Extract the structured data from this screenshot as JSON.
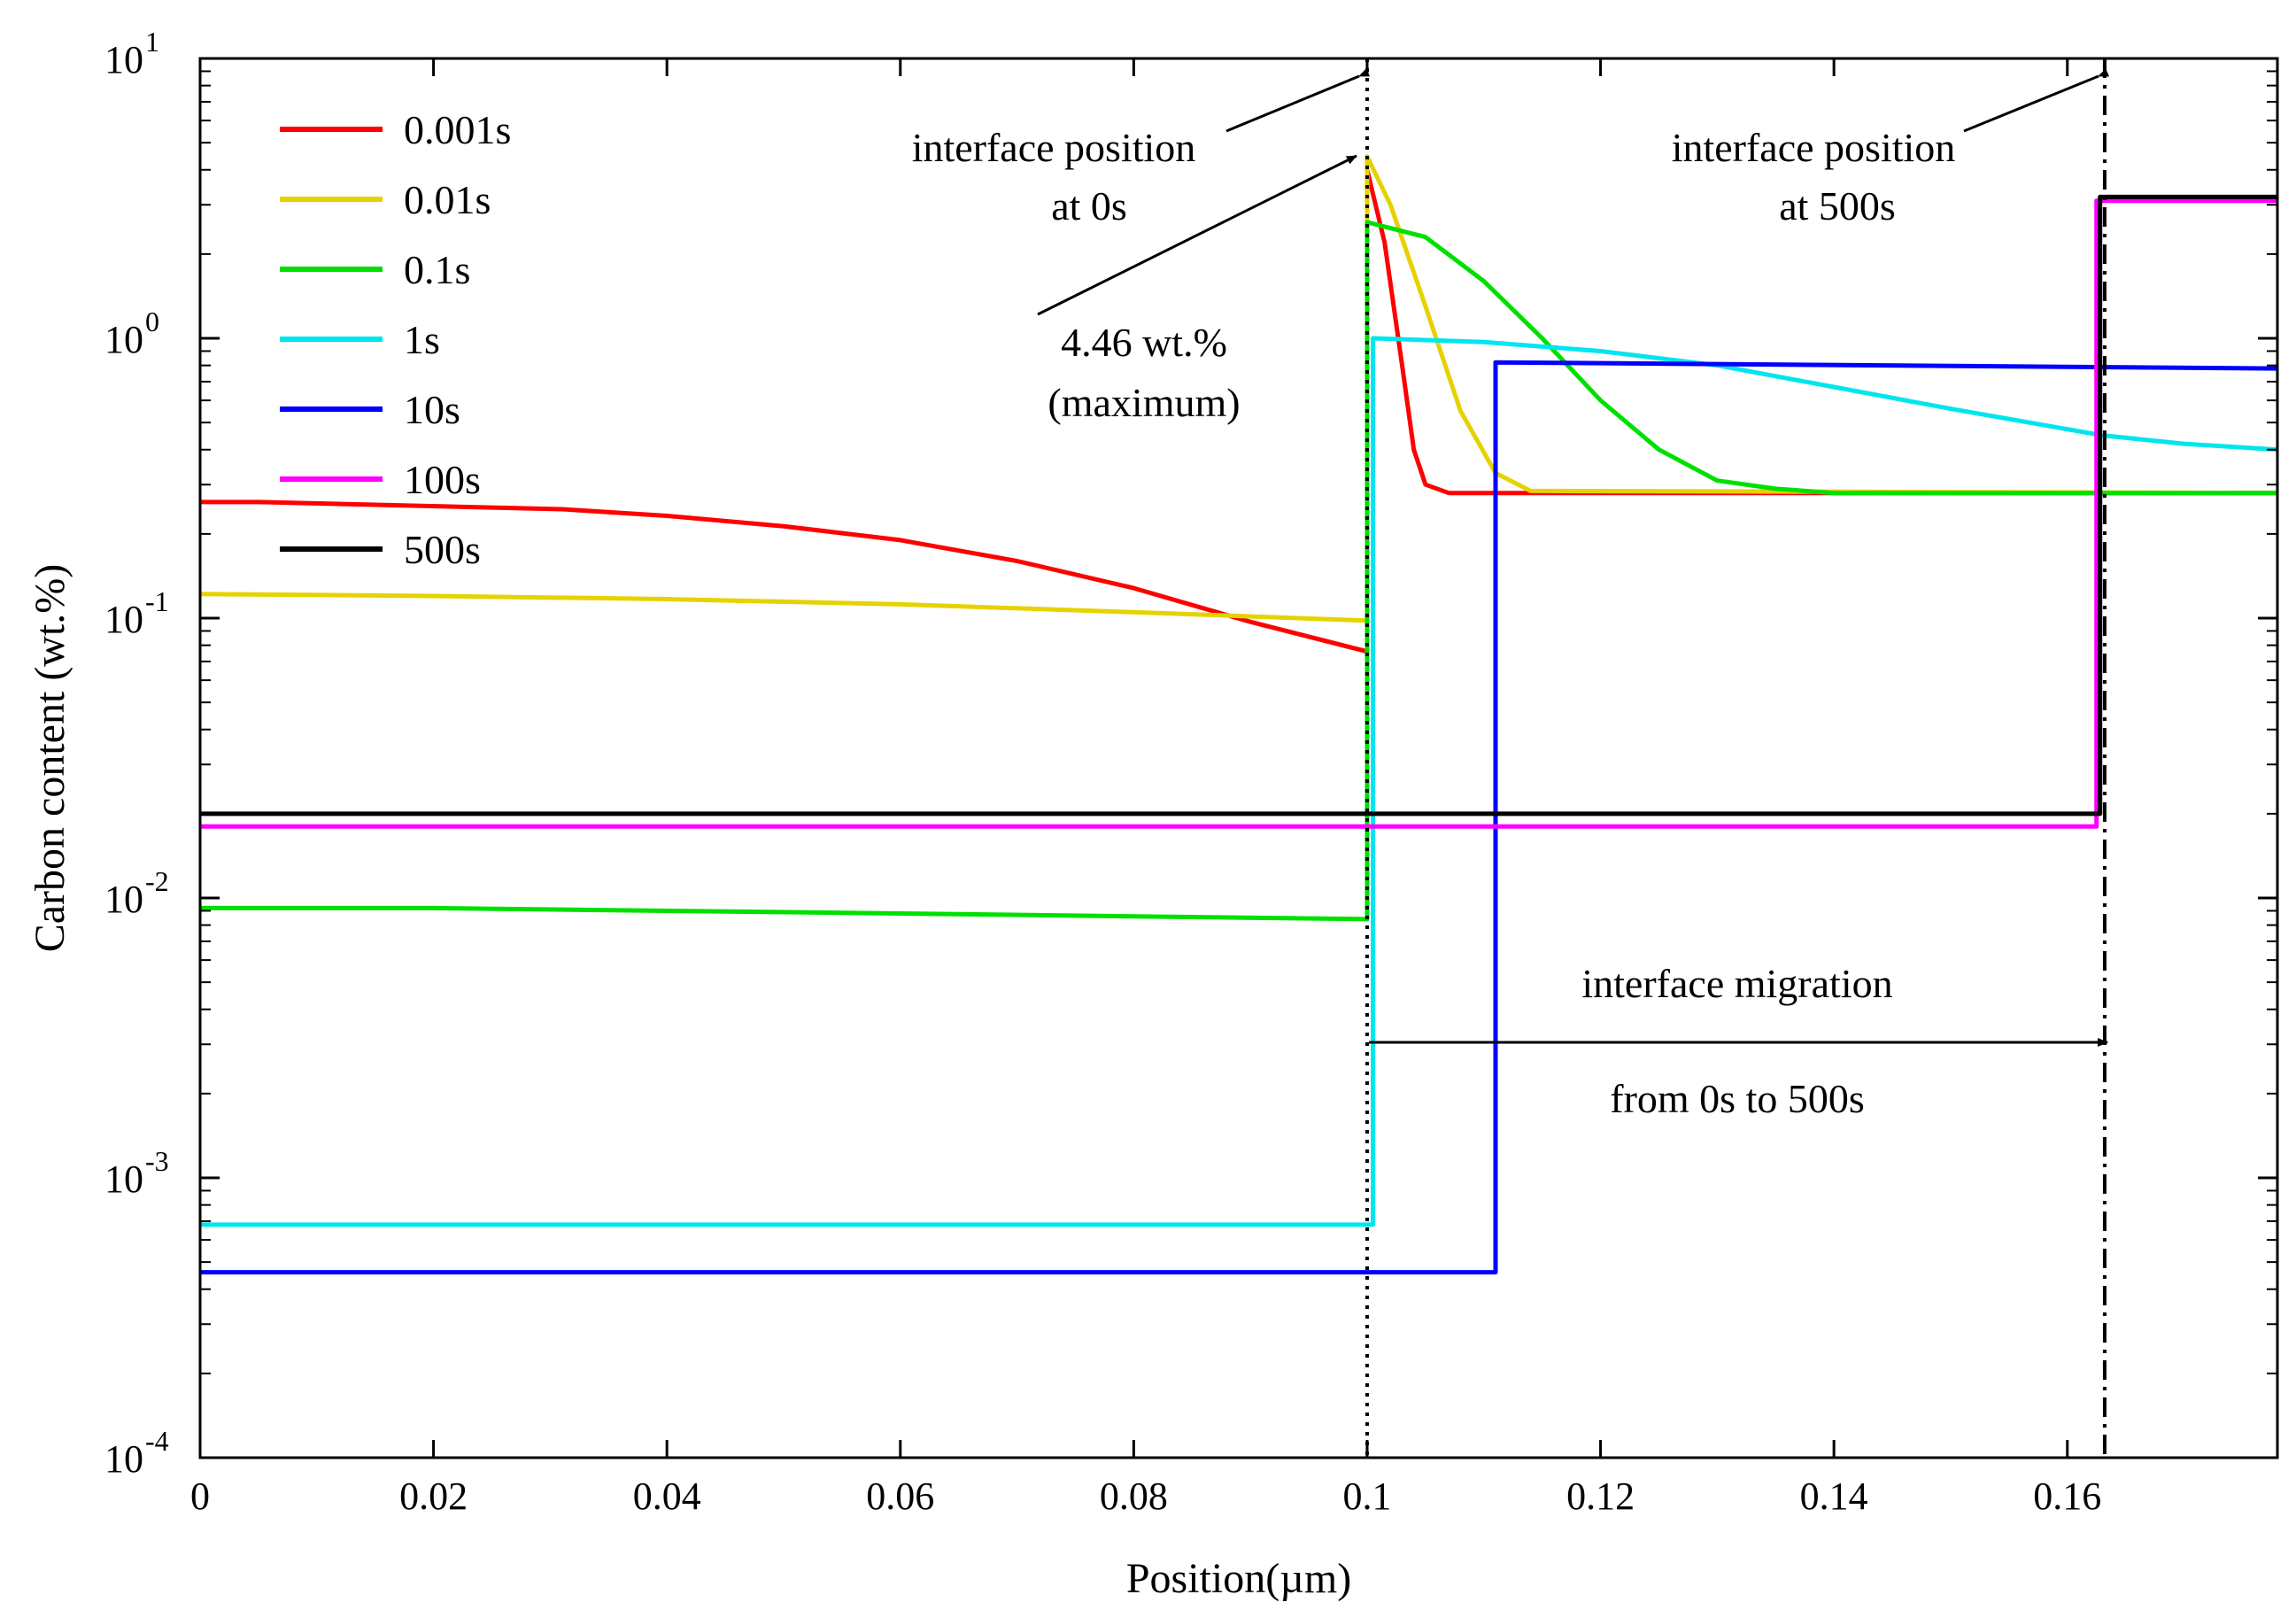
{
  "chart_data": {
    "type": "line",
    "title": "",
    "xlabel": "Position(µm)",
    "ylabel": "Carbon content (wt.%)",
    "xlim": [
      0,
      0.178
    ],
    "ylim": [
      0.0001,
      10
    ],
    "yscale": "log",
    "grid": false,
    "legend_position": "top-left",
    "x_ticks": [
      0,
      0.02,
      0.04,
      0.06,
      0.08,
      0.1,
      0.12,
      0.14,
      0.16
    ],
    "x_tick_labels": [
      "0",
      "0.02",
      "0.04",
      "0.06",
      "0.08",
      "0.1",
      "0.12",
      "0.14",
      "0.16"
    ],
    "y_ticks": [
      {
        "value": 10,
        "base": "10",
        "exp": "1"
      },
      {
        "value": 1,
        "base": "10",
        "exp": "0"
      },
      {
        "value": 0.1,
        "base": "10",
        "exp": "-1"
      },
      {
        "value": 0.01,
        "base": "10",
        "exp": "-2"
      },
      {
        "value": 0.001,
        "base": "10",
        "exp": "-3"
      },
      {
        "value": 0.0001,
        "base": "10",
        "exp": "-4"
      }
    ],
    "series": [
      {
        "name": "0.001s",
        "color": "#ff0000",
        "points": [
          [
            0,
            0.26
          ],
          [
            0.005,
            0.26
          ],
          [
            0.031,
            0.245
          ],
          [
            0.04,
            0.232
          ],
          [
            0.05,
            0.213
          ],
          [
            0.06,
            0.19
          ],
          [
            0.07,
            0.16
          ],
          [
            0.08,
            0.128
          ],
          [
            0.09,
            0.097
          ],
          [
            0.1,
            0.076
          ],
          [
            0.1,
            4.0
          ],
          [
            0.1015,
            2.2
          ],
          [
            0.103,
            0.8
          ],
          [
            0.104,
            0.4
          ],
          [
            0.105,
            0.3
          ],
          [
            0.107,
            0.28
          ],
          [
            0.178,
            0.28
          ]
        ]
      },
      {
        "name": "0.01s",
        "color": "#e6d200",
        "points": [
          [
            0,
            0.122
          ],
          [
            0.02,
            0.12
          ],
          [
            0.04,
            0.117
          ],
          [
            0.06,
            0.112
          ],
          [
            0.08,
            0.105
          ],
          [
            0.1,
            0.098
          ],
          [
            0.1,
            4.46
          ],
          [
            0.102,
            3.0
          ],
          [
            0.105,
            1.3
          ],
          [
            0.108,
            0.55
          ],
          [
            0.111,
            0.33
          ],
          [
            0.114,
            0.285
          ],
          [
            0.178,
            0.28
          ]
        ]
      },
      {
        "name": "0.1s",
        "color": "#00e000",
        "points": [
          [
            0,
            0.0092
          ],
          [
            0.02,
            0.0092
          ],
          [
            0.04,
            0.009
          ],
          [
            0.06,
            0.0088
          ],
          [
            0.08,
            0.0086
          ],
          [
            0.1,
            0.0084
          ],
          [
            0.1,
            2.6
          ],
          [
            0.105,
            2.3
          ],
          [
            0.11,
            1.6
          ],
          [
            0.115,
            1.0
          ],
          [
            0.12,
            0.6
          ],
          [
            0.125,
            0.4
          ],
          [
            0.13,
            0.31
          ],
          [
            0.135,
            0.29
          ],
          [
            0.14,
            0.28
          ],
          [
            0.178,
            0.28
          ]
        ]
      },
      {
        "name": "1s",
        "color": "#00e5ee",
        "points": [
          [
            0,
            0.00068
          ],
          [
            0.1005,
            0.00068
          ],
          [
            0.1005,
            1.0
          ],
          [
            0.11,
            0.97
          ],
          [
            0.12,
            0.9
          ],
          [
            0.13,
            0.8
          ],
          [
            0.14,
            0.67
          ],
          [
            0.15,
            0.56
          ],
          [
            0.163,
            0.45
          ],
          [
            0.17,
            0.42
          ],
          [
            0.178,
            0.4
          ]
        ]
      },
      {
        "name": "10s",
        "color": "#0000ff",
        "points": [
          [
            0,
            0.00046
          ],
          [
            0.111,
            0.00046
          ],
          [
            0.111,
            0.82
          ],
          [
            0.178,
            0.78
          ]
        ]
      },
      {
        "name": "100s",
        "color": "#ff00ff",
        "points": [
          [
            0,
            0.018
          ],
          [
            0.1625,
            0.018
          ],
          [
            0.1625,
            3.1
          ],
          [
            0.178,
            3.1
          ]
        ]
      },
      {
        "name": "500s",
        "color": "#000000",
        "points": [
          [
            0,
            0.02
          ],
          [
            0.1628,
            0.02
          ],
          [
            0.1628,
            3.2
          ],
          [
            0.178,
            3.2
          ]
        ]
      }
    ],
    "annotations": {
      "interface_0s": {
        "line1": "interface position",
        "line2": "at 0s",
        "x": 0.1
      },
      "interface_500s": {
        "line1": "interface position",
        "line2": "at 500s",
        "x": 0.1632
      },
      "maximum": {
        "line1": "4.46 wt.%",
        "line2": "(maximum)",
        "x": 0.1,
        "y": 4.46
      },
      "migration": {
        "line1": "interface migration",
        "line2": "from 0s to 500s",
        "x_from": 0.1,
        "x_to": 0.1632,
        "y": 0.003
      }
    }
  }
}
